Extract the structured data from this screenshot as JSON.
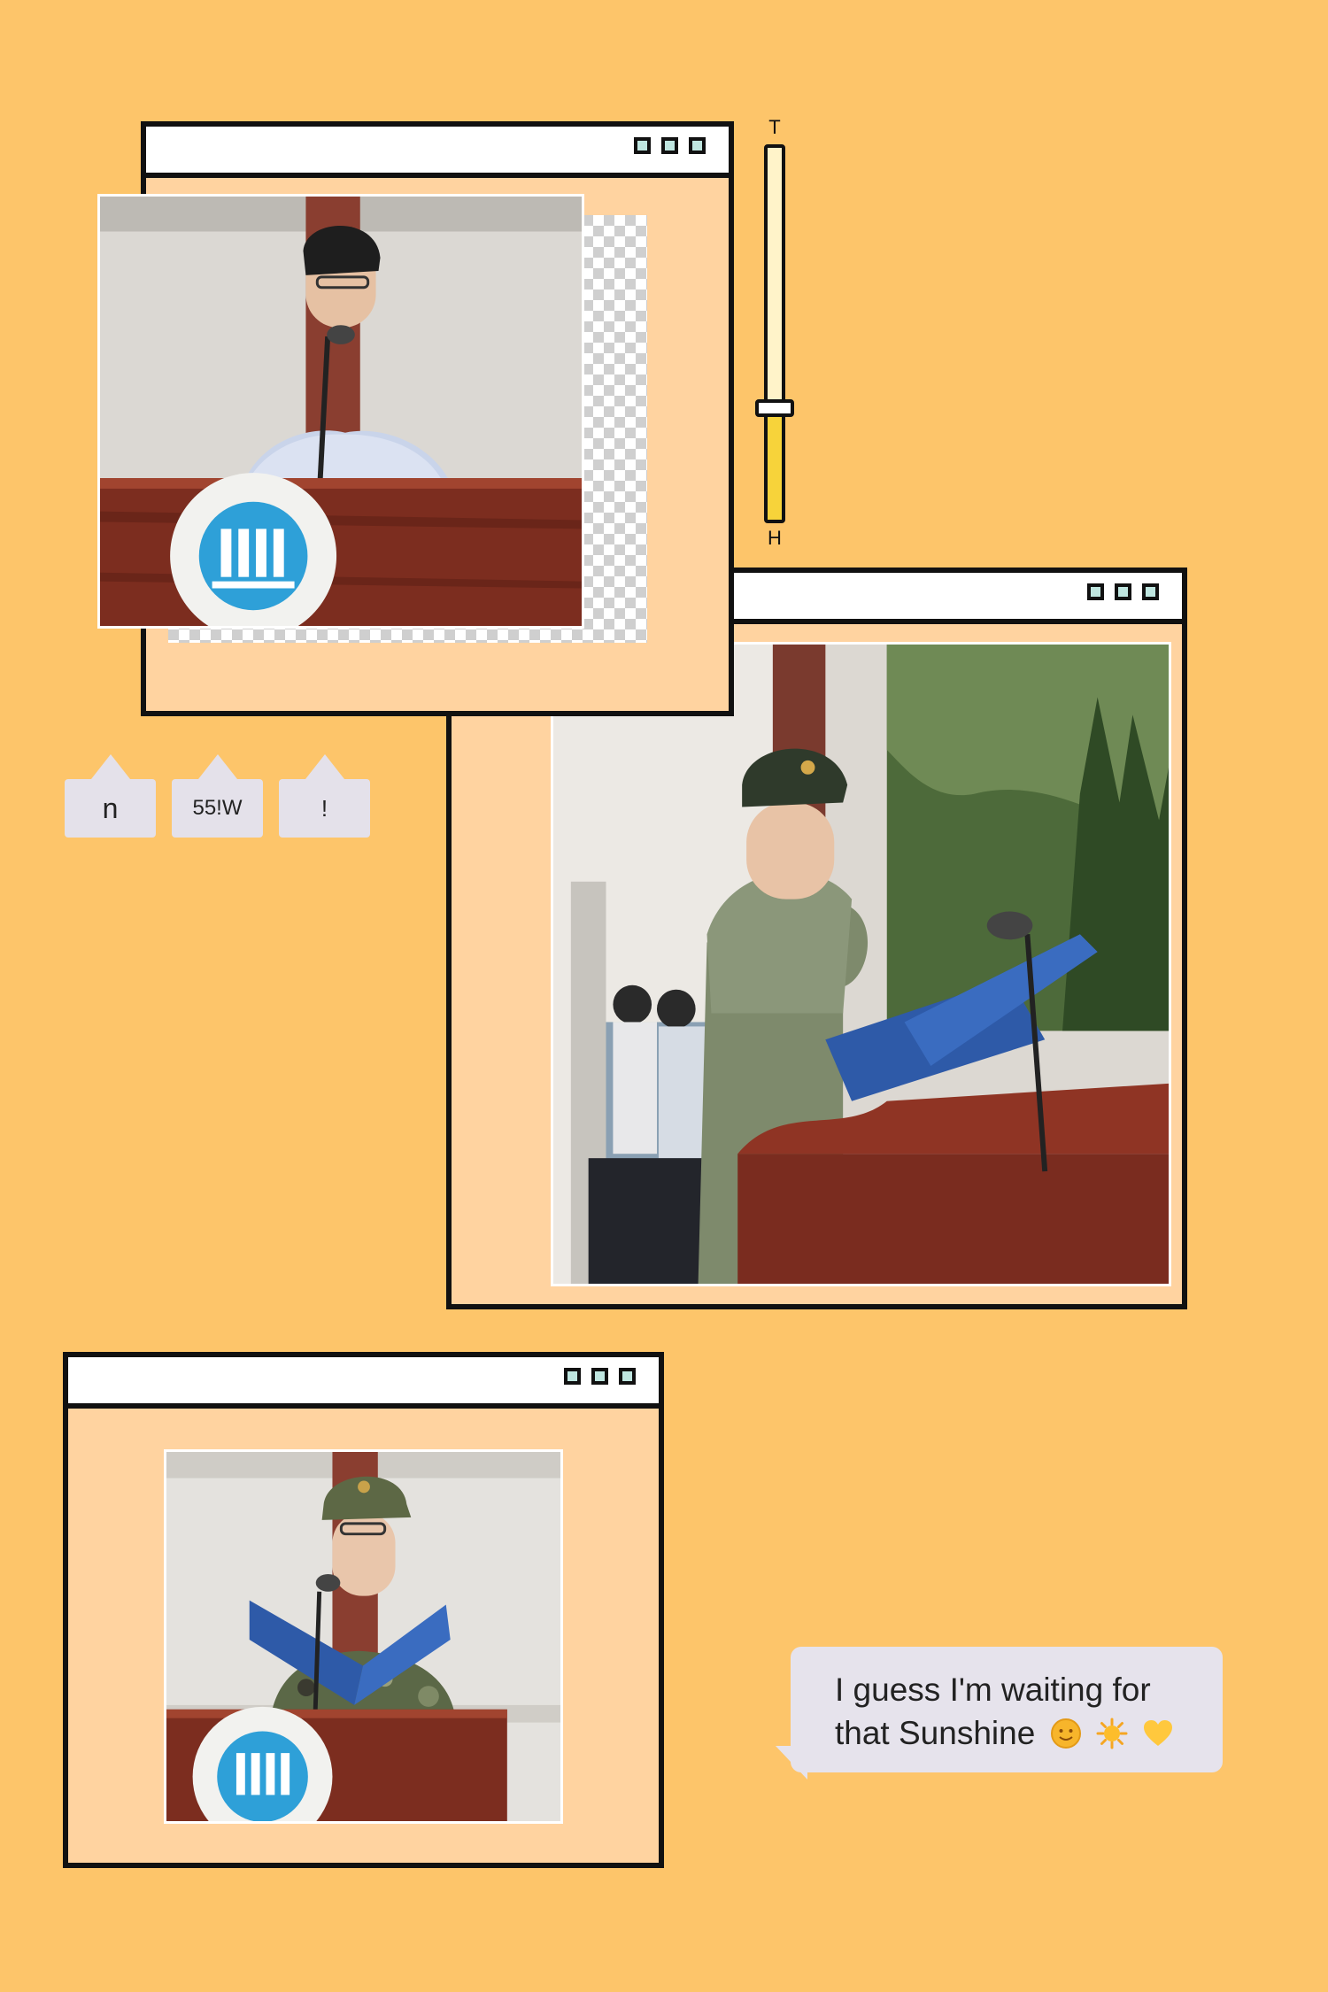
{
  "slider": {
    "top_label": "T",
    "bottom_label": "H",
    "level": 0.3
  },
  "chips": [
    "n",
    "55!W",
    "!"
  ],
  "bubble": {
    "line1": "I guess I'm waiting for",
    "line2": "that Sunshine",
    "emoji_names": [
      "sun-with-face-icon",
      "sun-icon",
      "yellow-heart-icon"
    ]
  },
  "windows": [
    {
      "name": "window-top",
      "photo": "speaker-man-at-podium-photo"
    },
    {
      "name": "window-middle",
      "photo": "soldier-reading-speech-photo"
    },
    {
      "name": "window-bottom",
      "photo": "student-camouflage-podium-photo"
    }
  ],
  "colors": {
    "background": "#FDC56A",
    "window_fill": "#FFD3A0",
    "border": "#111111",
    "control_fill": "#BFE6E0",
    "chip": "#E4E1EA",
    "bubble": "#E6E3EC",
    "slider_fill": "#F7D33A"
  }
}
